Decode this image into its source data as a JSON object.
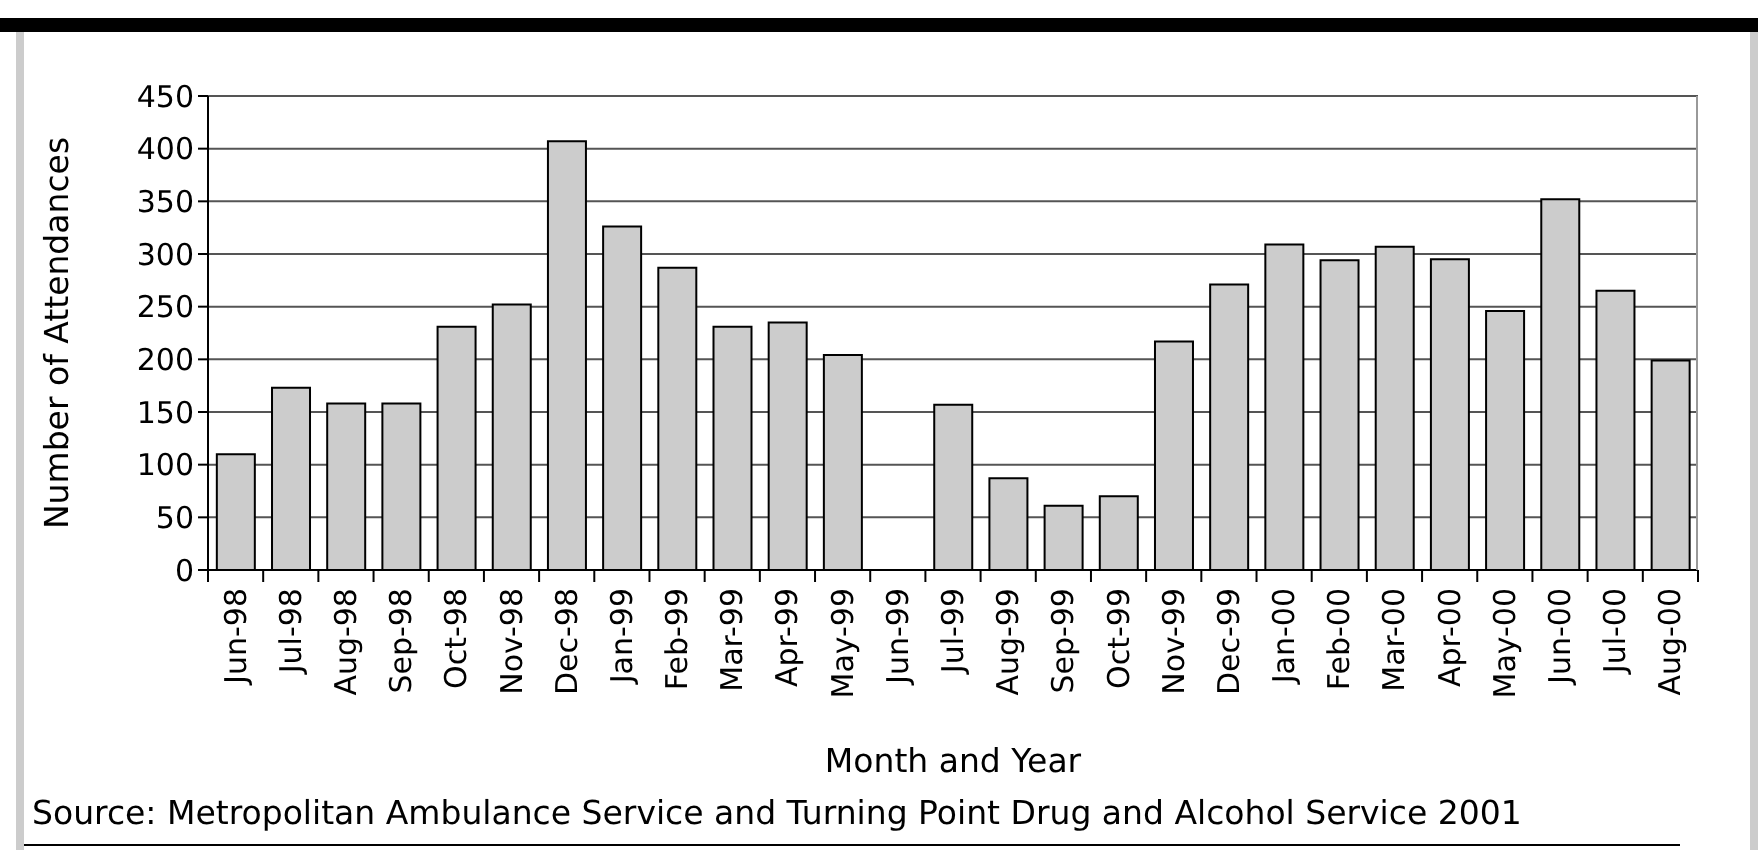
{
  "chart_data": {
    "type": "bar",
    "categories": [
      "Jun-98",
      "Jul-98",
      "Aug-98",
      "Sep-98",
      "Oct-98",
      "Nov-98",
      "Dec-98",
      "Jan-99",
      "Feb-99",
      "Mar-99",
      "Apr-99",
      "May-99",
      "Jun-99",
      "Jul-99",
      "Aug-99",
      "Sep-99",
      "Oct-99",
      "Nov-99",
      "Dec-99",
      "Jan-00",
      "Feb-00",
      "Mar-00",
      "Apr-00",
      "May-00",
      "Jun-00",
      "Jul-00",
      "Aug-00"
    ],
    "values": [
      110,
      173,
      158,
      158,
      231,
      252,
      407,
      326,
      287,
      231,
      235,
      204,
      null,
      157,
      87,
      61,
      70,
      217,
      271,
      309,
      294,
      307,
      295,
      246,
      352,
      265,
      199
    ],
    "color": "#cccccc",
    "xlabel": "Month and Year",
    "ylabel": "Number of Attendances",
    "ylim": [
      0,
      450
    ],
    "yticks": [
      0,
      50,
      100,
      150,
      200,
      250,
      300,
      350,
      400,
      450
    ],
    "grid": "y",
    "legend": false,
    "annotations": [
      "Source: Metropolitan Ambulance Service and Turning Point Drug and Alcohol Service 2001"
    ]
  }
}
